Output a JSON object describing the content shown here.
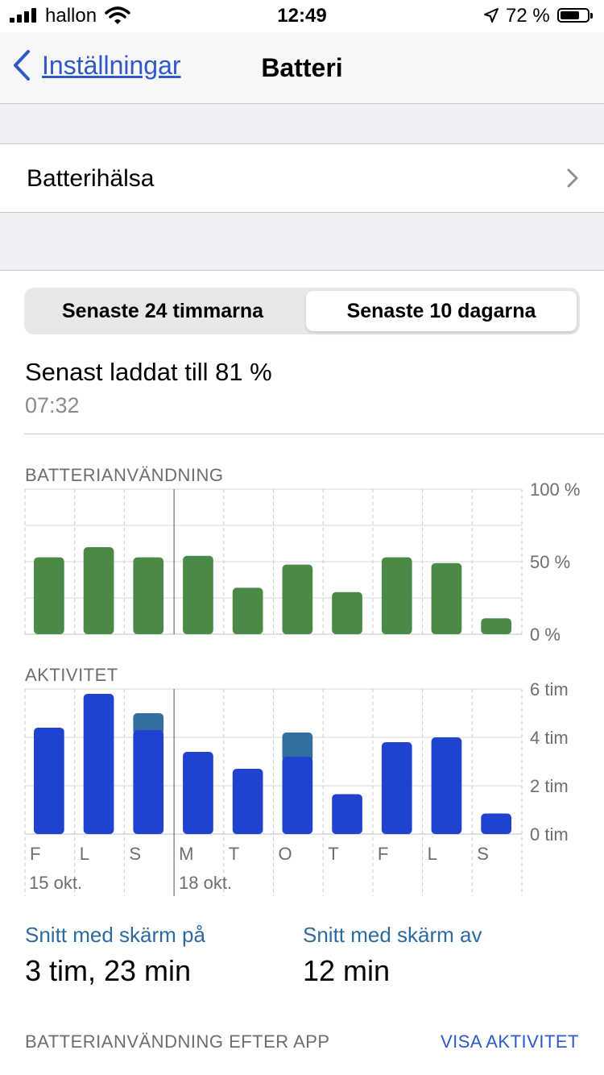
{
  "status_bar": {
    "carrier": "hallon",
    "time": "12:49",
    "battery_percent": "72 %",
    "battery_level": 0.72
  },
  "navbar": {
    "back_label": "Inställningar",
    "title": "Batteri"
  },
  "battery_health": {
    "label": "Batterihälsa"
  },
  "segments": {
    "option_1": "Senaste 24 timmarna",
    "option_2": "Senaste 10 dagarna",
    "selected": 2
  },
  "last_charged": {
    "text": "Senast laddat till 81 %",
    "time": "07:32"
  },
  "usage_chart": {
    "title": "BATTERIANVÄNDNING",
    "y_labels": [
      "100 %",
      "50 %",
      "0 %"
    ],
    "ylim": [
      0,
      100
    ],
    "values": [
      53,
      60,
      53,
      54,
      32,
      48,
      29,
      53,
      49,
      11
    ],
    "color": "#4a8a46"
  },
  "activity_chart": {
    "title": "AKTIVITET",
    "y_labels": [
      "6 tim",
      "4 tim",
      "2 tim",
      "0 tim"
    ],
    "ylim": [
      0,
      6
    ],
    "screen_on": [
      4.4,
      5.8,
      4.3,
      3.4,
      2.7,
      3.2,
      1.65,
      3.8,
      4.0,
      0.85
    ],
    "screen_off": [
      0,
      0,
      0.7,
      0,
      0,
      1.0,
      0,
      0,
      0,
      0
    ],
    "color_on": "#1f43cf",
    "color_off": "#336ea0"
  },
  "chart_data": [
    {
      "type": "bar",
      "title": "BATTERIANVÄNDNING",
      "categories": [
        "F",
        "L",
        "S",
        "M",
        "T",
        "O",
        "T",
        "F",
        "L",
        "S"
      ],
      "values": [
        53,
        60,
        53,
        54,
        32,
        48,
        29,
        53,
        49,
        11
      ],
      "ylim": [
        0,
        100
      ],
      "grid": true
    },
    {
      "type": "bar",
      "title": "AKTIVITET",
      "categories": [
        "F",
        "L",
        "S",
        "M",
        "T",
        "O",
        "T",
        "F",
        "L",
        "S"
      ],
      "series": [
        {
          "values": [
            4.4,
            5.8,
            4.3,
            3.4,
            2.7,
            3.2,
            1.65,
            3.8,
            4.0,
            0.85
          ]
        },
        {
          "values": [
            0,
            0,
            0.7,
            0,
            0,
            1.0,
            0,
            0,
            0,
            0
          ]
        }
      ],
      "ylim": [
        0,
        6
      ],
      "grid": true
    }
  ],
  "x_axis": {
    "day_labels": [
      "F",
      "L",
      "S",
      "M",
      "T",
      "O",
      "T",
      "F",
      "L",
      "S"
    ],
    "date_1": "15 okt.",
    "date_2": "18 okt."
  },
  "stats": {
    "screen_on_label": "Snitt med skärm på",
    "screen_on_value": "3 tim, 23 min",
    "screen_off_label": "Snitt med skärm av",
    "screen_off_value": "12 min"
  },
  "footer": {
    "title": "BATTERIANVÄNDNING EFTER APP",
    "link": "VISA AKTIVITET"
  }
}
